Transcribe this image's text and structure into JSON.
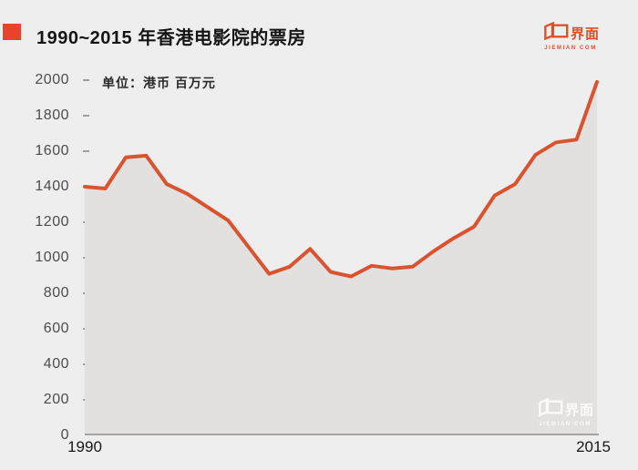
{
  "header": {
    "title": "1990~2015 年香港电影院的票房",
    "logo": {
      "cn": "界面",
      "en": "JIEMIAN COM"
    }
  },
  "watermark": {
    "cn": "界面",
    "en": "JIEMIAN COM"
  },
  "chart_data": {
    "type": "area",
    "title": "1990~2015 年香港电影院的票房",
    "unit_label": "单位：港币 百万元",
    "series_name": "香港电影院票房（港币 百万元）",
    "x": [
      1990,
      1991,
      1992,
      1993,
      1994,
      1995,
      1996,
      1997,
      1998,
      1999,
      2000,
      2001,
      2002,
      2003,
      2004,
      2005,
      2006,
      2007,
      2008,
      2009,
      2010,
      2011,
      2012,
      2013,
      2014,
      2015
    ],
    "values": [
      1400,
      1390,
      1565,
      1575,
      1415,
      1360,
      1285,
      1210,
      1060,
      910,
      950,
      1050,
      920,
      895,
      955,
      940,
      950,
      1035,
      1110,
      1175,
      1350,
      1415,
      1580,
      1650,
      1665,
      1990
    ],
    "ylim": [
      0,
      2000
    ],
    "yticks": [
      0,
      200,
      400,
      600,
      800,
      1000,
      1200,
      1400,
      1600,
      1800,
      2000
    ],
    "xtick_labels": [
      "1990",
      "2015"
    ],
    "grid": false,
    "legend": false,
    "colors": {
      "line": "#da5330",
      "area": "#e2e1e0",
      "background": "#efeeee",
      "accent_square": "#e8432d",
      "brand": "#e24e26",
      "axis": "#a3a3a3"
    }
  }
}
